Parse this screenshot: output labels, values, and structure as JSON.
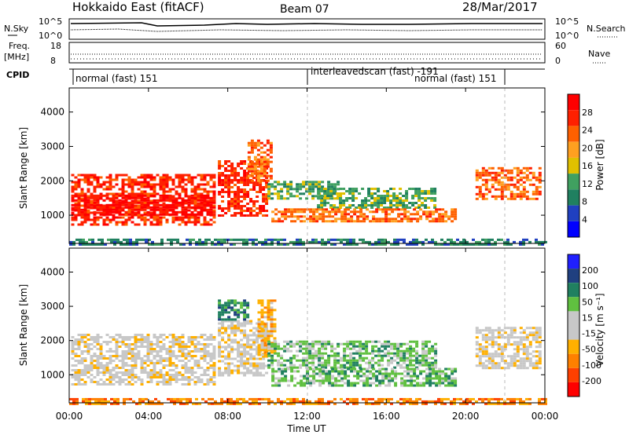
{
  "header": {
    "radar": "Hokkaido East (fitACF)",
    "beam": "Beam 07",
    "date": "28/Mar/2017"
  },
  "strip": {
    "nsky_label": "N.Sky",
    "nsky_ticks": [
      "10^5",
      "10^0"
    ],
    "nsearch_label": "N.Search",
    "nsearch_ticks": [
      "10^5",
      "10^0"
    ],
    "freq_label": "Freq.",
    "freq_unit": "[MHz]",
    "freq_ticks": [
      "18",
      "8"
    ],
    "nave_label": "Nave",
    "nave_ticks": [
      "60",
      "0"
    ],
    "cpid_label": "CPID",
    "cpid_segments": [
      {
        "text": "normal (fast) 151",
        "start": 0.0,
        "end": 12.0
      },
      {
        "text": "interleavedscan (fast) -191",
        "start": 12.0,
        "end": 22.0
      },
      {
        "text": "normal (fast) 151",
        "start": 17.5,
        "end": 22.0
      }
    ]
  },
  "colors": {
    "power": [
      "#0000ff",
      "#2040c0",
      "#208060",
      "#40a060",
      "#e0c000",
      "#ffa020",
      "#ff6000",
      "#ff2000",
      "#ff0000"
    ],
    "velocity": [
      "#ff0000",
      "#ff4000",
      "#ff8000",
      "#ffb000",
      "#c8c8c8",
      "#c8c8c8",
      "#60c040",
      "#208060",
      "#204080",
      "#2020ff"
    ]
  },
  "chart_data": [
    {
      "type": "heatmap",
      "quantity": "power",
      "title": "",
      "xlabel": "Time UT",
      "ylabel": "Slant Range [km]",
      "xlim": [
        0,
        24
      ],
      "ylim": [
        180,
        4700
      ],
      "x_ticks": [
        "00:00",
        "04:00",
        "08:00",
        "12:00",
        "16:00",
        "20:00",
        "00:00"
      ],
      "y_ticks": [
        1000,
        2000,
        3000,
        4000
      ],
      "colorbar_label": "Power [dB]",
      "colorbar_ticks": [
        "28",
        "24",
        "20",
        "16",
        "12",
        "8",
        "4"
      ],
      "regions": [
        {
          "t0": 0.1,
          "t1": 7.3,
          "r0": 700,
          "r1": 2200,
          "level": 7
        },
        {
          "t0": 0.1,
          "t1": 7.3,
          "r0": 1000,
          "r1": 1600,
          "level": 8
        },
        {
          "t0": 7.5,
          "t1": 10.0,
          "r0": 1000,
          "r1": 2600,
          "level": 7
        },
        {
          "t0": 9.0,
          "t1": 10.2,
          "r0": 2000,
          "r1": 3200,
          "level": 6
        },
        {
          "t0": 10.0,
          "t1": 13.5,
          "r0": 1500,
          "r1": 2000,
          "level": 3
        },
        {
          "t0": 12.5,
          "t1": 18.5,
          "r0": 1200,
          "r1": 1800,
          "level": 3
        },
        {
          "t0": 10.2,
          "t1": 19.5,
          "r0": 800,
          "r1": 1200,
          "level": 6
        },
        {
          "t0": 20.5,
          "t1": 23.8,
          "r0": 1500,
          "r1": 2400,
          "level": 6
        },
        {
          "t0": 0.0,
          "t1": 24.0,
          "r0": 180,
          "r1": 320,
          "level": 2
        }
      ]
    },
    {
      "type": "heatmap",
      "quantity": "velocity",
      "title": "",
      "xlabel": "Time UT",
      "ylabel": "Slant Range [km]",
      "xlim": [
        0,
        24
      ],
      "ylim": [
        180,
        4700
      ],
      "x_ticks": [
        "00:00",
        "04:00",
        "08:00",
        "12:00",
        "16:00",
        "20:00",
        "00:00"
      ],
      "y_ticks": [
        1000,
        2000,
        3000,
        4000
      ],
      "colorbar_label": "Velocity [m s⁻¹]",
      "colorbar_ticks": [
        "200",
        "100",
        "50",
        "15",
        "-15",
        "-50",
        "-100",
        "-200"
      ],
      "regions": [
        {
          "t0": 0.1,
          "t1": 7.3,
          "r0": 700,
          "r1": 2200,
          "level": 4
        },
        {
          "t0": 7.5,
          "t1": 10.0,
          "r0": 1000,
          "r1": 2600,
          "level": 4
        },
        {
          "t0": 7.5,
          "t1": 9.0,
          "r0": 2600,
          "r1": 3200,
          "level": 7
        },
        {
          "t0": 9.5,
          "t1": 10.3,
          "r0": 1600,
          "r1": 3200,
          "level": 3
        },
        {
          "t0": 10.0,
          "t1": 18.5,
          "r0": 1200,
          "r1": 2000,
          "level": 6
        },
        {
          "t0": 10.2,
          "t1": 19.5,
          "r0": 700,
          "r1": 1200,
          "level": 6
        },
        {
          "t0": 20.5,
          "t1": 23.8,
          "r0": 1200,
          "r1": 2400,
          "level": 4
        },
        {
          "t0": 0.0,
          "t1": 24.0,
          "r0": 180,
          "r1": 320,
          "level": 2
        }
      ]
    }
  ]
}
